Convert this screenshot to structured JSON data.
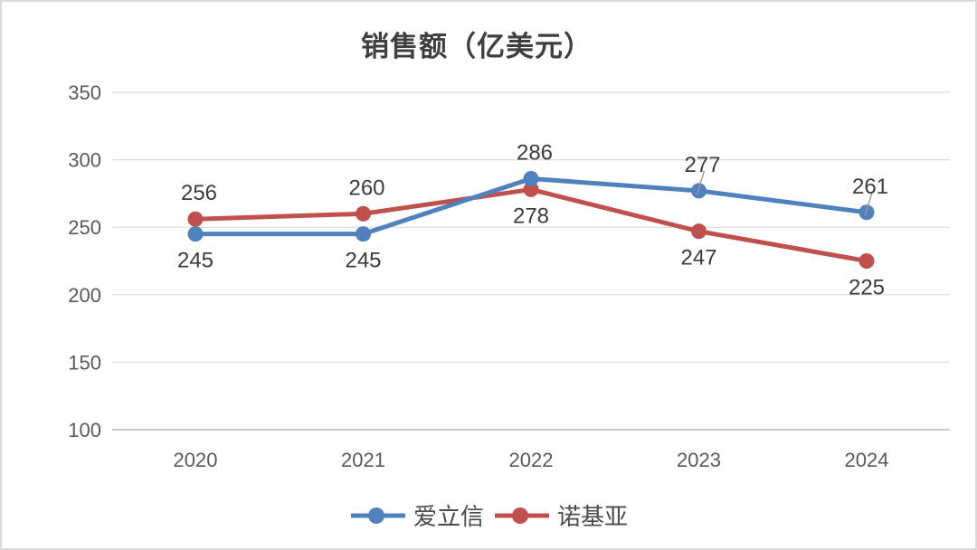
{
  "chart_data": {
    "type": "line",
    "title": "销售额（亿美元）",
    "categories": [
      "2020",
      "2021",
      "2022",
      "2023",
      "2024"
    ],
    "series": [
      {
        "name": "诺基亚",
        "color": "#C0504D",
        "values": [
          256,
          260,
          278,
          247,
          225
        ],
        "label_placement": [
          "above",
          "above",
          "below",
          "below",
          "below"
        ],
        "leader_lines": [
          false,
          false,
          false,
          false,
          false
        ]
      },
      {
        "name": "爱立信",
        "color": "#4F81BD",
        "values": [
          245,
          245,
          286,
          277,
          261
        ],
        "label_placement": [
          "below",
          "below",
          "above",
          "above",
          "above"
        ],
        "leader_lines": [
          false,
          false,
          false,
          true,
          true
        ]
      }
    ],
    "legend_order": [
      "爱立信",
      "诺基亚"
    ],
    "y_axis": {
      "min": 100,
      "max": 350,
      "step": 50,
      "ticks": [
        350,
        300,
        250,
        200,
        150,
        100
      ]
    },
    "grid": true,
    "legend_position": "bottom",
    "colors": {
      "gridline": "#dcdcdc",
      "axis_line": "#c3c3c3",
      "axis_label": "#595959",
      "data_label": "#3b3b3b",
      "leader_line": "#9b9b9b",
      "frame_border": "#dadada",
      "title_text": "#3f3f3f"
    }
  },
  "legend": {
    "items": [
      {
        "label": "爱立信",
        "color": "#4F81BD"
      },
      {
        "label": "诺基亚",
        "color": "#C0504D"
      }
    ]
  }
}
